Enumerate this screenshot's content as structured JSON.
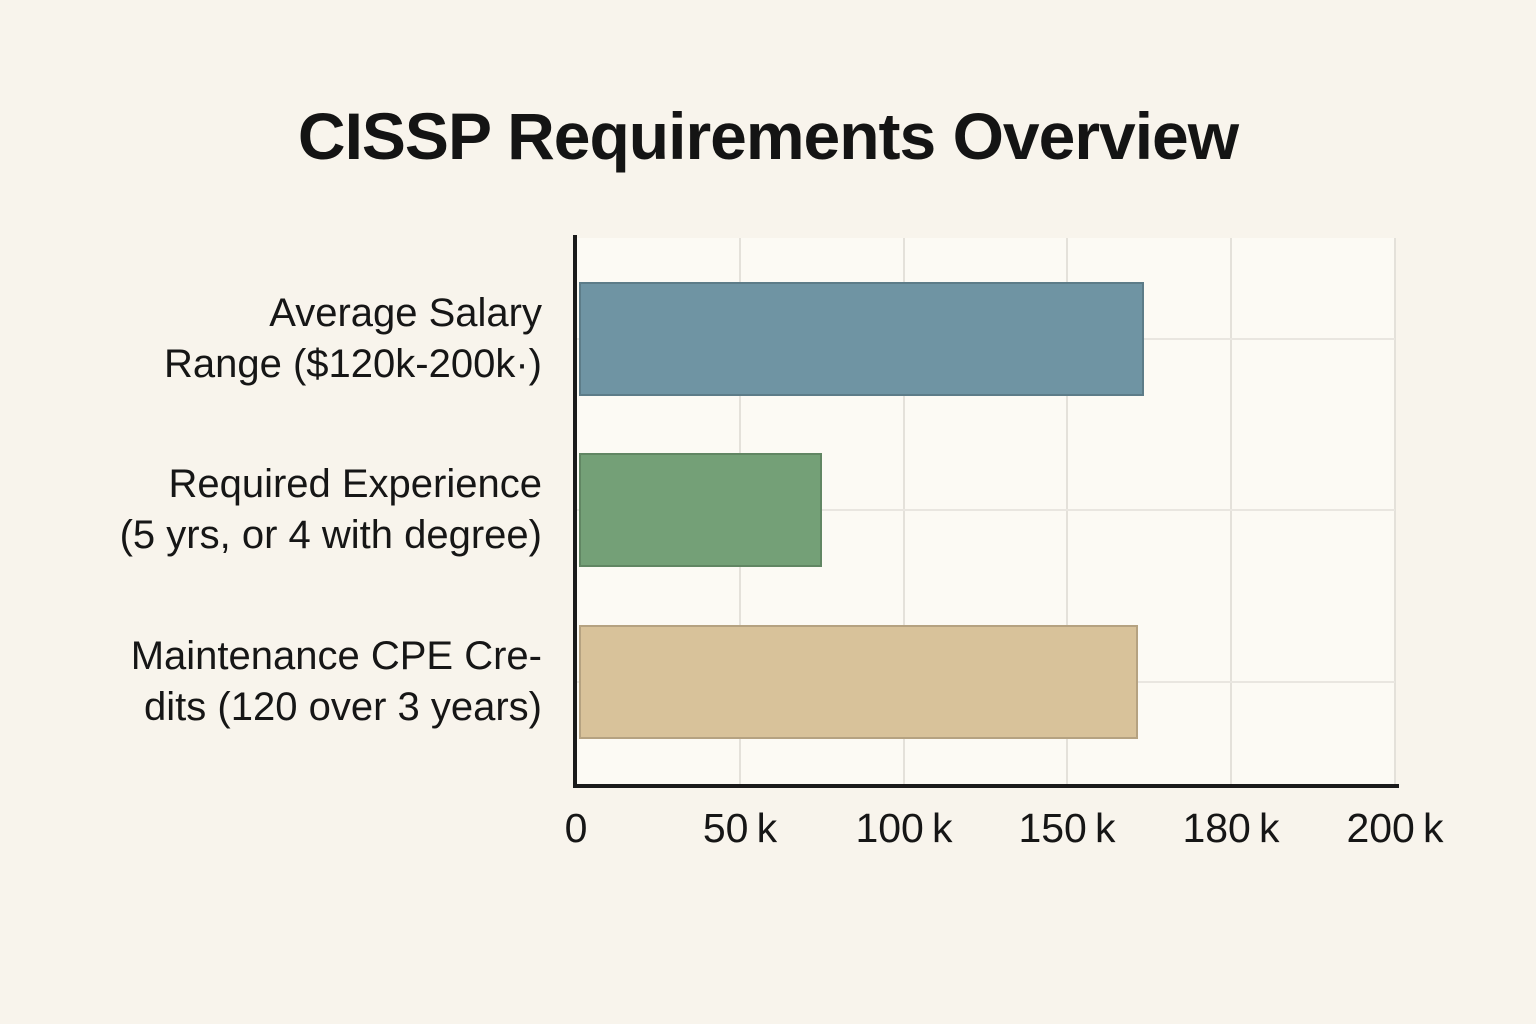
{
  "page": {
    "background": "#f8f4ec",
    "plot_background": "#fcfaf4"
  },
  "chart_data": {
    "type": "bar",
    "orientation": "horizontal",
    "title": "CISSP Requirements Overview",
    "categories": [
      {
        "label_lines": [
          "Average Salary",
          "Range ($120k-200k·)"
        ],
        "value": 164
      },
      {
        "label_lines": [
          "Required Experience",
          "(5 yrs, or 4 with degree)"
        ],
        "value": 75
      },
      {
        "label_lines": [
          "Maintenance CPE Cre-",
          "dits (120 over 3 years)"
        ],
        "value": 163
      }
    ],
    "bar_colors": [
      "#6f94a3",
      "#74a077",
      "#d8c29a"
    ],
    "x_axis": {
      "tick_labels": [
        "0",
        "50 k",
        "100 k",
        "150 k",
        "180 k",
        "200 k"
      ],
      "tick_values": [
        0,
        50,
        100,
        150,
        180,
        200
      ],
      "range": [
        0,
        200
      ],
      "grid": true
    },
    "ylabel": "",
    "xlabel": ""
  },
  "colors": {
    "text": "#161616",
    "title_text": "#141414",
    "axis": "#1a1a1a",
    "grid_vertical": "#e4e1da",
    "grid_horizontal": "#e9e6e0",
    "bar_border": "rgba(0,0,0,0.16)"
  }
}
